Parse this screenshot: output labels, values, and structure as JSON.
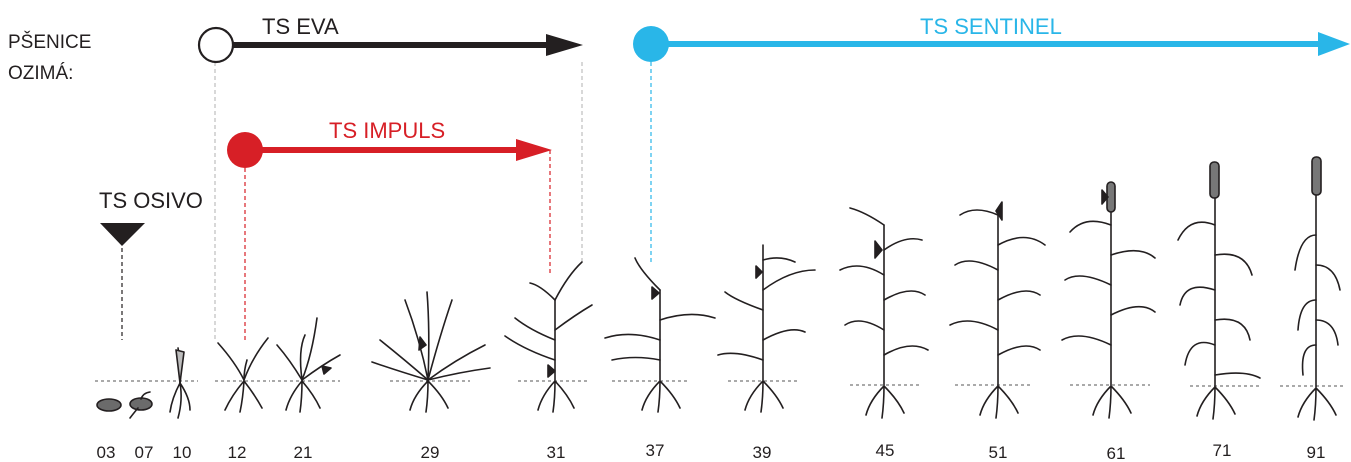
{
  "crop": {
    "label_line1": "PŠENICE",
    "label_line2": "OZIMÁ:"
  },
  "products": {
    "eva": {
      "label": "TS EVA",
      "color": "#231f20",
      "start_stage": "12",
      "end_stage": "31",
      "marker": "hollow-circle"
    },
    "impuls": {
      "label": "TS IMPULS",
      "color": "#d71f26",
      "start_stage": "12",
      "end_stage": "31",
      "marker": "filled-circle"
    },
    "sentinel": {
      "label": "TS SENTINEL",
      "color": "#29b6e8",
      "start_stage": "37",
      "end_stage": "91",
      "marker": "filled-circle"
    },
    "osivo": {
      "label": "TS OSIVO",
      "color": "#231f20",
      "stage": "03",
      "marker": "down-triangle"
    }
  },
  "stages": [
    "03",
    "07",
    "10",
    "12",
    "21",
    "29",
    "31",
    "37",
    "39",
    "45",
    "51",
    "61",
    "71",
    "91"
  ]
}
